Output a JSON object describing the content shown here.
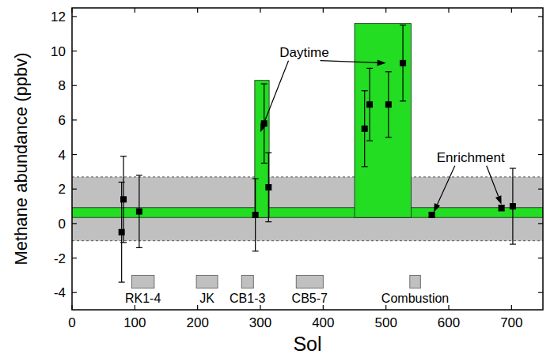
{
  "chart_data": {
    "type": "scatter",
    "x_label": "Sol",
    "y_label": "Methane abundance (ppbv)",
    "xlim": [
      0,
      750
    ],
    "ylim": [
      -5,
      12.5
    ],
    "xticks": [
      0,
      100,
      200,
      300,
      400,
      500,
      600,
      700
    ],
    "yticks": [
      -4,
      -2,
      0,
      2,
      4,
      6,
      8,
      10,
      12
    ],
    "grid": false,
    "color": "#000000",
    "marker": "square",
    "x": [
      79,
      82,
      107,
      292,
      306,
      313,
      466,
      474,
      504,
      527,
      573,
      684,
      702
    ],
    "values": [
      -0.5,
      1.4,
      0.7,
      0.5,
      5.8,
      2.1,
      5.5,
      6.9,
      6.9,
      9.3,
      0.5,
      0.9,
      1.0
    ],
    "errors": [
      2.9,
      2.5,
      2.1,
      2.1,
      2.3,
      2.0,
      2.2,
      2.1,
      1.9,
      2.2,
      0.1,
      0.16,
      2.2
    ],
    "band": {
      "y": [
        -1.0,
        2.7
      ],
      "color": "#c0c0c0",
      "line_style": "dotted"
    },
    "regions": [
      {
        "x": [
          0,
          750
        ],
        "y": [
          0.35,
          0.92
        ]
      },
      {
        "x": [
          291,
          314
        ],
        "y": [
          0.35,
          8.3
        ]
      },
      {
        "x": [
          450,
          540
        ],
        "y": [
          0.35,
          11.6
        ]
      }
    ],
    "region_color": "#22dd22",
    "experiments": [
      {
        "label": "RK1-4",
        "x": [
          95,
          131
        ]
      },
      {
        "label": "JK",
        "x": [
          198,
          232
        ]
      },
      {
        "label": "CB1-3",
        "x": [
          270,
          289
        ]
      },
      {
        "label": "CB5-7",
        "x": [
          357,
          400
        ]
      },
      {
        "label": "Combustion",
        "x": [
          538,
          555
        ]
      }
    ],
    "experiment_y": [
      -3.75,
      -3.0
    ],
    "experiment_color": "#c0c0c0",
    "annotations": [
      {
        "text": "Daytime",
        "x": 370,
        "y": 9.95,
        "targets": [
          [
            300,
            5.3
          ],
          [
            500,
            9.3
          ]
        ]
      },
      {
        "text": "Enrichment",
        "x": 635,
        "y": 3.85,
        "targets": [
          [
            576,
            0.65
          ],
          [
            684,
            1.1
          ]
        ]
      }
    ]
  }
}
